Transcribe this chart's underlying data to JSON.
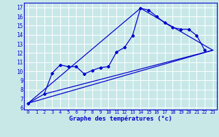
{
  "xlabel": "Graphe des températures (°c)",
  "bg_color": "#c8e8e8",
  "grid_color": "#ffffff",
  "line_color": "#0000cc",
  "x_ticks": [
    0,
    1,
    2,
    3,
    4,
    5,
    6,
    7,
    8,
    9,
    10,
    11,
    12,
    13,
    14,
    15,
    16,
    17,
    18,
    19,
    20,
    21,
    22,
    23
  ],
  "y_ticks": [
    6,
    7,
    8,
    9,
    10,
    11,
    12,
    13,
    14,
    15,
    16,
    17
  ],
  "ylim": [
    5.8,
    17.5
  ],
  "xlim": [
    -0.5,
    23.5
  ],
  "main_x": [
    0,
    2,
    3,
    4,
    5,
    6,
    7,
    8,
    9,
    10,
    11,
    12,
    13,
    14,
    15,
    16,
    17,
    18,
    19,
    20,
    21,
    22
  ],
  "main_y": [
    6.5,
    7.5,
    9.8,
    10.7,
    10.5,
    10.5,
    9.7,
    10.1,
    10.4,
    10.5,
    12.1,
    12.6,
    13.9,
    16.9,
    16.7,
    16.0,
    15.3,
    14.8,
    14.6,
    14.6,
    13.9,
    12.3
  ],
  "line1_x": [
    0,
    23
  ],
  "line1_y": [
    6.5,
    12.3
  ],
  "line2_x": [
    0,
    14,
    23
  ],
  "line2_y": [
    6.5,
    16.9,
    12.3
  ],
  "line3_x": [
    2,
    23
  ],
  "line3_y": [
    7.5,
    12.3
  ]
}
